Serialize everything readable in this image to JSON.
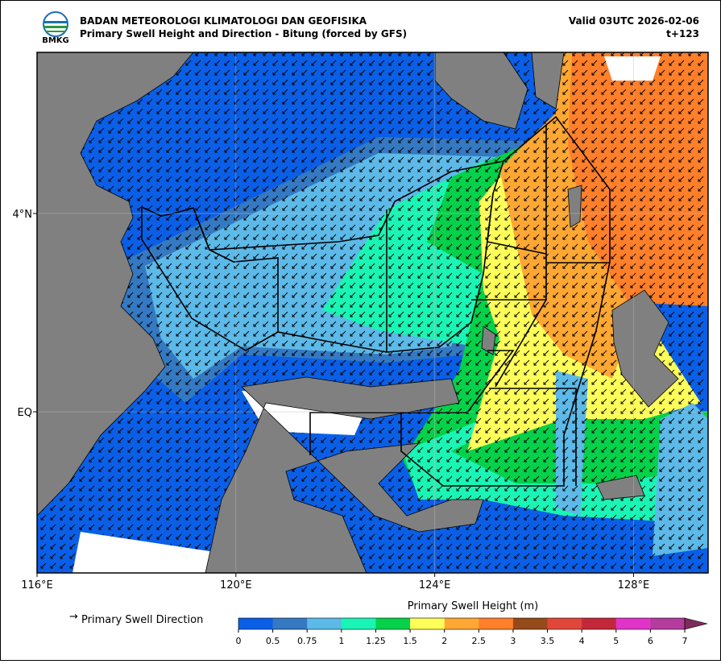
{
  "header": {
    "logo_text": "BMKG",
    "agency": "BADAN METEOROLOGI KLIMATOLOGI DAN GEOFISIKA",
    "title": "Primary Swell Height and Direction - Bitung (forced by GFS)",
    "valid": "Valid 03UTC 2026-02-06",
    "lead": "t+123"
  },
  "map": {
    "xlim": [
      116,
      129.5
    ],
    "ylim": [
      -3.25,
      7.25
    ],
    "xticks": [
      {
        "value": 116,
        "label": "116°E"
      },
      {
        "value": 120,
        "label": "120°E"
      },
      {
        "value": 124,
        "label": "124°E"
      },
      {
        "value": 128,
        "label": "128°E"
      }
    ],
    "yticks": [
      {
        "value": 4,
        "label": "4°N"
      },
      {
        "value": 0,
        "label": "EQ"
      }
    ],
    "grid": true
  },
  "legend": {
    "label": "Primary Swell Direction"
  },
  "colorbar": {
    "title": "Primary Swell Height (m)",
    "levels": [
      0,
      0.5,
      0.75,
      1,
      1.25,
      1.5,
      2,
      2.5,
      3,
      3.5,
      4,
      5,
      6,
      7
    ],
    "colors": [
      "#0a5fe6",
      "#3479c2",
      "#5cb9e8",
      "#1af5b5",
      "#05d14a",
      "#ffff5a",
      "#ffa733",
      "#ff7f2a",
      "#954a1a",
      "#e0463a",
      "#c3283a",
      "#e034c8",
      "#b43c9c"
    ],
    "extend_color": "#7e2c5c"
  }
}
